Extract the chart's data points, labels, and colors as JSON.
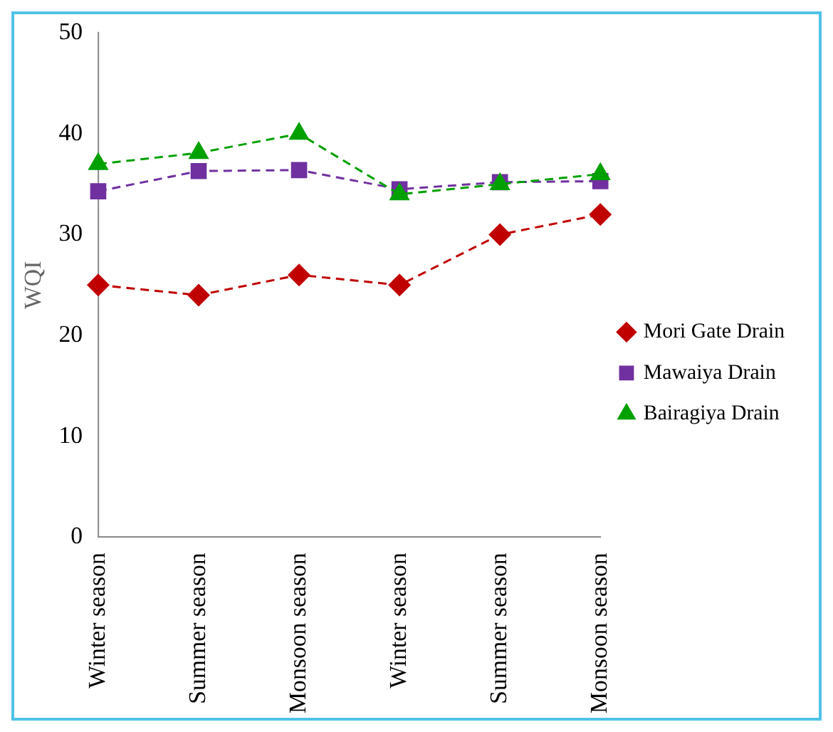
{
  "chart_data": {
    "type": "line",
    "ylabel": "WQI",
    "categories": [
      "Winter season",
      "Summer season",
      "Monsoon season",
      "Winter season",
      "Summer season",
      "Monsoon season"
    ],
    "ylim": [
      0,
      50
    ],
    "yticks": [
      0,
      10,
      20,
      30,
      40,
      50
    ],
    "grid": false,
    "legend": "right",
    "line_style": "dashed",
    "series": [
      {
        "name": "Mori Gate Drain",
        "color": "#c00000",
        "marker": "diamond",
        "values": [
          25,
          24,
          26,
          25,
          30,
          32
        ]
      },
      {
        "name": "Mawaiya Drain",
        "color": "#7030a0",
        "marker": "square",
        "values": [
          34.3,
          36.3,
          36.4,
          34.5,
          35.2,
          35.3
        ]
      },
      {
        "name": "Bairagiya Drain",
        "color": "#00a000",
        "marker": "triangle",
        "values": [
          37,
          38.1,
          40,
          34,
          35,
          36
        ]
      }
    ]
  }
}
